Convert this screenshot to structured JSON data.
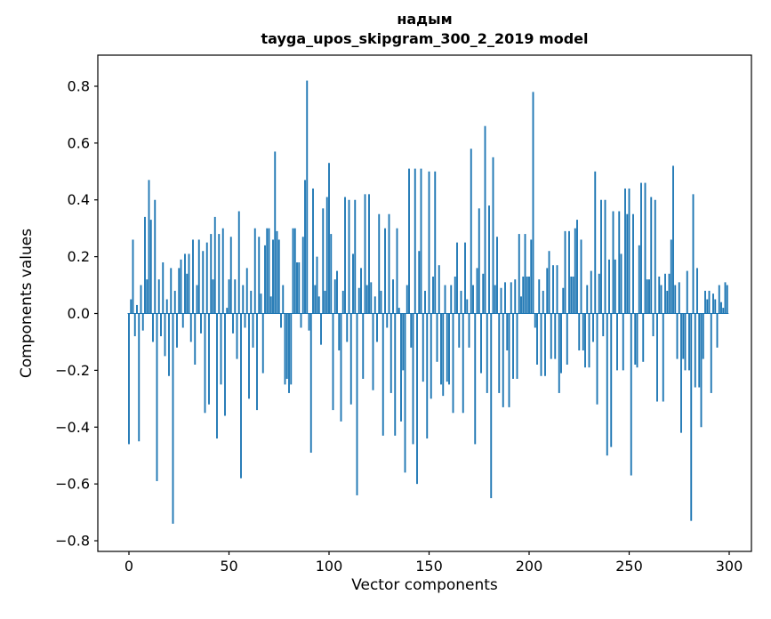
{
  "figure": {
    "title_line1": "надым",
    "title_line2": "tayga_upos_skipgram_300_2_2019 model",
    "xlabel": "Vector components",
    "ylabel": "Components values"
  },
  "chart_data": {
    "type": "bar",
    "title": "надым",
    "subtitle": "tayga_upos_skipgram_300_2_2019 model",
    "xlabel": "Vector components",
    "ylabel": "Components values",
    "xlim": [
      -11,
      311
    ],
    "ylim": [
      -0.84,
      0.91
    ],
    "grid": false,
    "legend": "none",
    "bar_color": "#1f77b4",
    "xticks": [
      {
        "value": 0,
        "label": "0"
      },
      {
        "value": 50,
        "label": "50"
      },
      {
        "value": 100,
        "label": "100"
      },
      {
        "value": 150,
        "label": "150"
      },
      {
        "value": 200,
        "label": "200"
      },
      {
        "value": 250,
        "label": "250"
      },
      {
        "value": 300,
        "label": "300"
      }
    ],
    "yticks": [
      {
        "value": -0.8,
        "label": "−0.8"
      },
      {
        "value": -0.6,
        "label": "−0.6"
      },
      {
        "value": -0.4,
        "label": "−0.4"
      },
      {
        "value": -0.2,
        "label": "−0.2"
      },
      {
        "value": 0.0,
        "label": "0.0"
      },
      {
        "value": 0.2,
        "label": "0.2"
      },
      {
        "value": 0.4,
        "label": "0.4"
      },
      {
        "value": 0.6,
        "label": "0.6"
      },
      {
        "value": 0.8,
        "label": "0.8"
      }
    ],
    "x_start": 0,
    "values": [
      -0.46,
      0.05,
      0.26,
      -0.08,
      0.03,
      -0.45,
      0.1,
      -0.06,
      0.34,
      0.12,
      0.47,
      0.33,
      -0.1,
      0.4,
      -0.59,
      0.12,
      -0.08,
      0.18,
      -0.15,
      0.05,
      -0.22,
      0.16,
      -0.74,
      0.08,
      -0.12,
      0.16,
      0.19,
      -0.05,
      0.21,
      0.14,
      0.21,
      -0.1,
      0.26,
      -0.18,
      0.1,
      0.26,
      -0.07,
      0.22,
      -0.35,
      0.25,
      -0.32,
      0.28,
      0.12,
      0.34,
      -0.44,
      0.28,
      -0.25,
      0.3,
      -0.36,
      0.02,
      0.12,
      0.27,
      -0.07,
      0.12,
      -0.16,
      0.36,
      -0.58,
      0.1,
      -0.05,
      0.16,
      -0.3,
      0.08,
      -0.12,
      0.3,
      -0.34,
      0.27,
      0.07,
      -0.21,
      0.24,
      0.3,
      0.3,
      0.06,
      0.26,
      0.57,
      0.29,
      0.26,
      -0.05,
      0.1,
      -0.25,
      -0.23,
      -0.28,
      -0.25,
      0.3,
      0.3,
      0.18,
      0.18,
      -0.05,
      0.27,
      0.47,
      0.82,
      -0.06,
      -0.49,
      0.44,
      0.1,
      0.2,
      0.06,
      -0.11,
      0.37,
      0.08,
      0.41,
      0.53,
      0.28,
      -0.34,
      0.12,
      0.15,
      -0.13,
      -0.38,
      0.08,
      0.41,
      -0.1,
      0.4,
      -0.32,
      0.21,
      0.4,
      -0.64,
      0.09,
      0.16,
      -0.23,
      0.42,
      0.1,
      0.42,
      0.11,
      -0.27,
      0.06,
      -0.1,
      0.35,
      0.08,
      -0.43,
      0.3,
      -0.05,
      0.35,
      -0.28,
      0.12,
      -0.43,
      0.3,
      0.02,
      -0.38,
      -0.2,
      -0.56,
      0.1,
      0.51,
      -0.12,
      -0.46,
      0.51,
      -0.6,
      0.22,
      0.51,
      -0.24,
      0.08,
      -0.44,
      0.5,
      -0.3,
      0.13,
      0.5,
      -0.17,
      0.17,
      -0.25,
      -0.29,
      0.1,
      -0.24,
      -0.25,
      0.1,
      -0.35,
      0.13,
      0.25,
      -0.12,
      0.08,
      -0.35,
      0.25,
      0.05,
      -0.12,
      0.58,
      0.1,
      -0.46,
      0.16,
      0.37,
      -0.21,
      0.14,
      0.66,
      -0.28,
      0.38,
      -0.65,
      0.55,
      0.1,
      0.27,
      -0.28,
      0.09,
      -0.33,
      0.11,
      -0.13,
      -0.33,
      0.11,
      -0.23,
      0.12,
      -0.23,
      0.28,
      0.06,
      0.13,
      0.28,
      0.13,
      0.13,
      0.26,
      0.78,
      -0.05,
      -0.18,
      0.12,
      -0.22,
      0.08,
      -0.22,
      0.16,
      0.22,
      -0.16,
      0.17,
      -0.16,
      0.17,
      -0.28,
      -0.21,
      0.09,
      0.29,
      -0.18,
      0.29,
      0.13,
      0.13,
      0.3,
      0.33,
      -0.13,
      0.26,
      -0.13,
      -0.19,
      0.1,
      -0.19,
      0.15,
      -0.1,
      0.5,
      -0.32,
      0.14,
      0.4,
      -0.08,
      0.4,
      -0.5,
      0.19,
      -0.47,
      0.36,
      0.19,
      -0.2,
      0.36,
      0.21,
      -0.2,
      0.44,
      0.35,
      0.44,
      -0.57,
      0.35,
      -0.18,
      -0.19,
      0.24,
      0.46,
      -0.17,
      0.46,
      0.12,
      0.12,
      0.41,
      -0.08,
      0.4,
      -0.31,
      0.13,
      0.1,
      -0.31,
      0.14,
      0.08,
      0.14,
      0.26,
      0.52,
      0.1,
      -0.16,
      0.11,
      -0.42,
      -0.16,
      -0.2,
      0.15,
      -0.2,
      -0.73,
      0.42,
      -0.26,
      0.16,
      -0.26,
      -0.4,
      -0.16,
      0.08,
      0.05,
      0.08,
      -0.28,
      0.07,
      0.05,
      -0.12,
      0.1,
      0.04,
      0.02,
      0.11,
      0.1
    ]
  }
}
